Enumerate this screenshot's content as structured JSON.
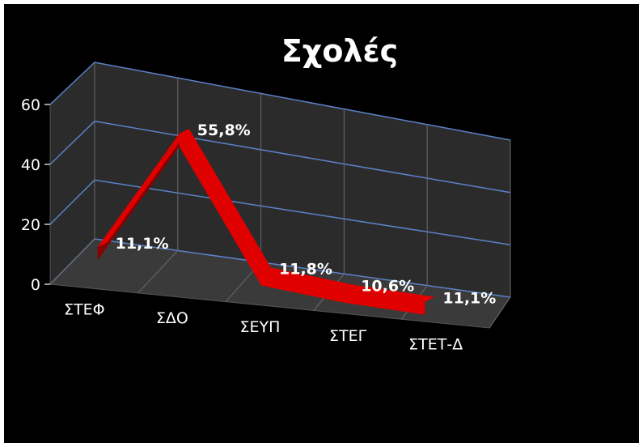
{
  "chart_data": {
    "type": "line",
    "title": "Σχολές",
    "categories": [
      "ΣΤΕΦ",
      "ΣΔΟ",
      "ΣΕΥΠ",
      "ΣΤΕΓ",
      "ΣΤΕΤ-Δ"
    ],
    "series": [
      {
        "values": [
          11.1,
          55.8,
          11.8,
          10.6,
          11.1
        ],
        "labels": [
          "11,1%",
          "55,8%",
          "11,8%",
          "10,6%",
          "11,1%"
        ],
        "color": "#e00000"
      }
    ],
    "ylim": [
      0,
      60
    ],
    "yticks": [
      0,
      20,
      40,
      60
    ],
    "grid": true,
    "legend": "none",
    "style": "3d"
  },
  "colors": {
    "background": "#000000",
    "wall": "#2b2b2b",
    "floor": "#3a3a3a",
    "gridline": "#5b82c8",
    "line": "#e00000",
    "line_side": "#8a0000"
  }
}
